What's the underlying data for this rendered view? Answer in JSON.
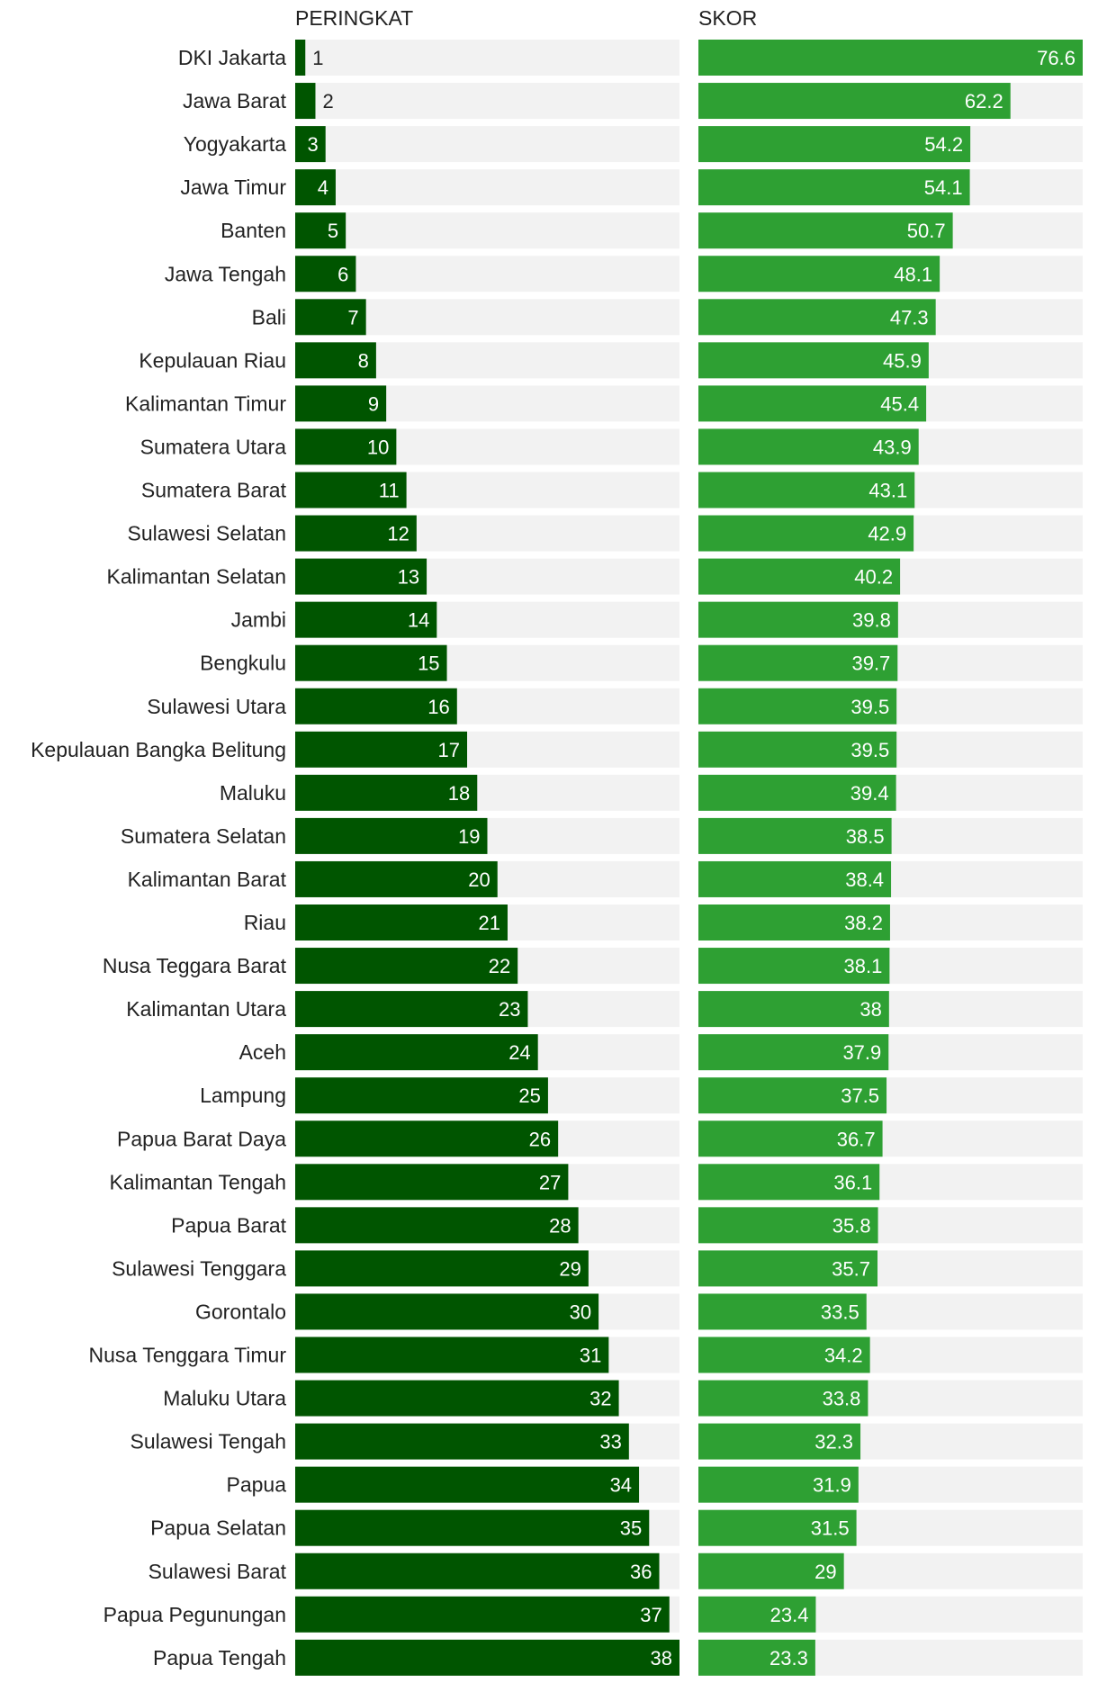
{
  "chart_data": {
    "type": "bar",
    "orientation": "horizontal",
    "panels": [
      {
        "title": "PERINGKAT",
        "series": "rank",
        "max": 38,
        "bar_color": "#005500",
        "track_color": "#f2f2f2"
      },
      {
        "title": "SKOR",
        "series": "score",
        "max": 76.6,
        "bar_color": "#2ea033",
        "track_color": "#f2f2f2"
      }
    ],
    "categories": [
      "DKI Jakarta",
      "Jawa Barat",
      "Yogyakarta",
      "Jawa Timur",
      "Banten",
      "Jawa Tengah",
      "Bali",
      "Kepulauan Riau",
      "Kalimantan Timur",
      "Sumatera Utara",
      "Sumatera Barat",
      "Sulawesi Selatan",
      "Kalimantan Selatan",
      "Jambi",
      "Bengkulu",
      "Sulawesi Utara",
      "Kepulauan Bangka Belitung",
      "Maluku",
      "Sumatera Selatan",
      "Kalimantan Barat",
      "Riau",
      "Nusa Teggara Barat",
      "Kalimantan Utara",
      "Aceh",
      "Lampung",
      "Papua Barat Daya",
      "Kalimantan Tengah",
      "Papua Barat",
      "Sulawesi Tenggara",
      "Gorontalo",
      "Nusa Tenggara Timur",
      "Maluku Utara",
      "Sulawesi Tengah",
      "Papua",
      "Papua Selatan",
      "Sulawesi Barat",
      "Papua Pegunungan",
      "Papua Tengah"
    ],
    "series": [
      {
        "name": "rank",
        "values": [
          1,
          2,
          3,
          4,
          5,
          6,
          7,
          8,
          9,
          10,
          11,
          12,
          13,
          14,
          15,
          16,
          17,
          18,
          19,
          20,
          21,
          22,
          23,
          24,
          25,
          26,
          27,
          28,
          29,
          30,
          31,
          32,
          33,
          34,
          35,
          36,
          37,
          38
        ]
      },
      {
        "name": "score",
        "values": [
          76.6,
          62.2,
          54.2,
          54.1,
          50.7,
          48.1,
          47.3,
          45.9,
          45.4,
          43.9,
          43.1,
          42.9,
          40.2,
          39.8,
          39.7,
          39.5,
          39.5,
          39.4,
          38.5,
          38.4,
          38.2,
          38.1,
          38,
          37.9,
          37.5,
          36.7,
          36.1,
          35.8,
          35.7,
          33.5,
          34.2,
          33.8,
          32.3,
          31.9,
          31.5,
          29,
          23.4,
          23.3
        ]
      }
    ]
  }
}
